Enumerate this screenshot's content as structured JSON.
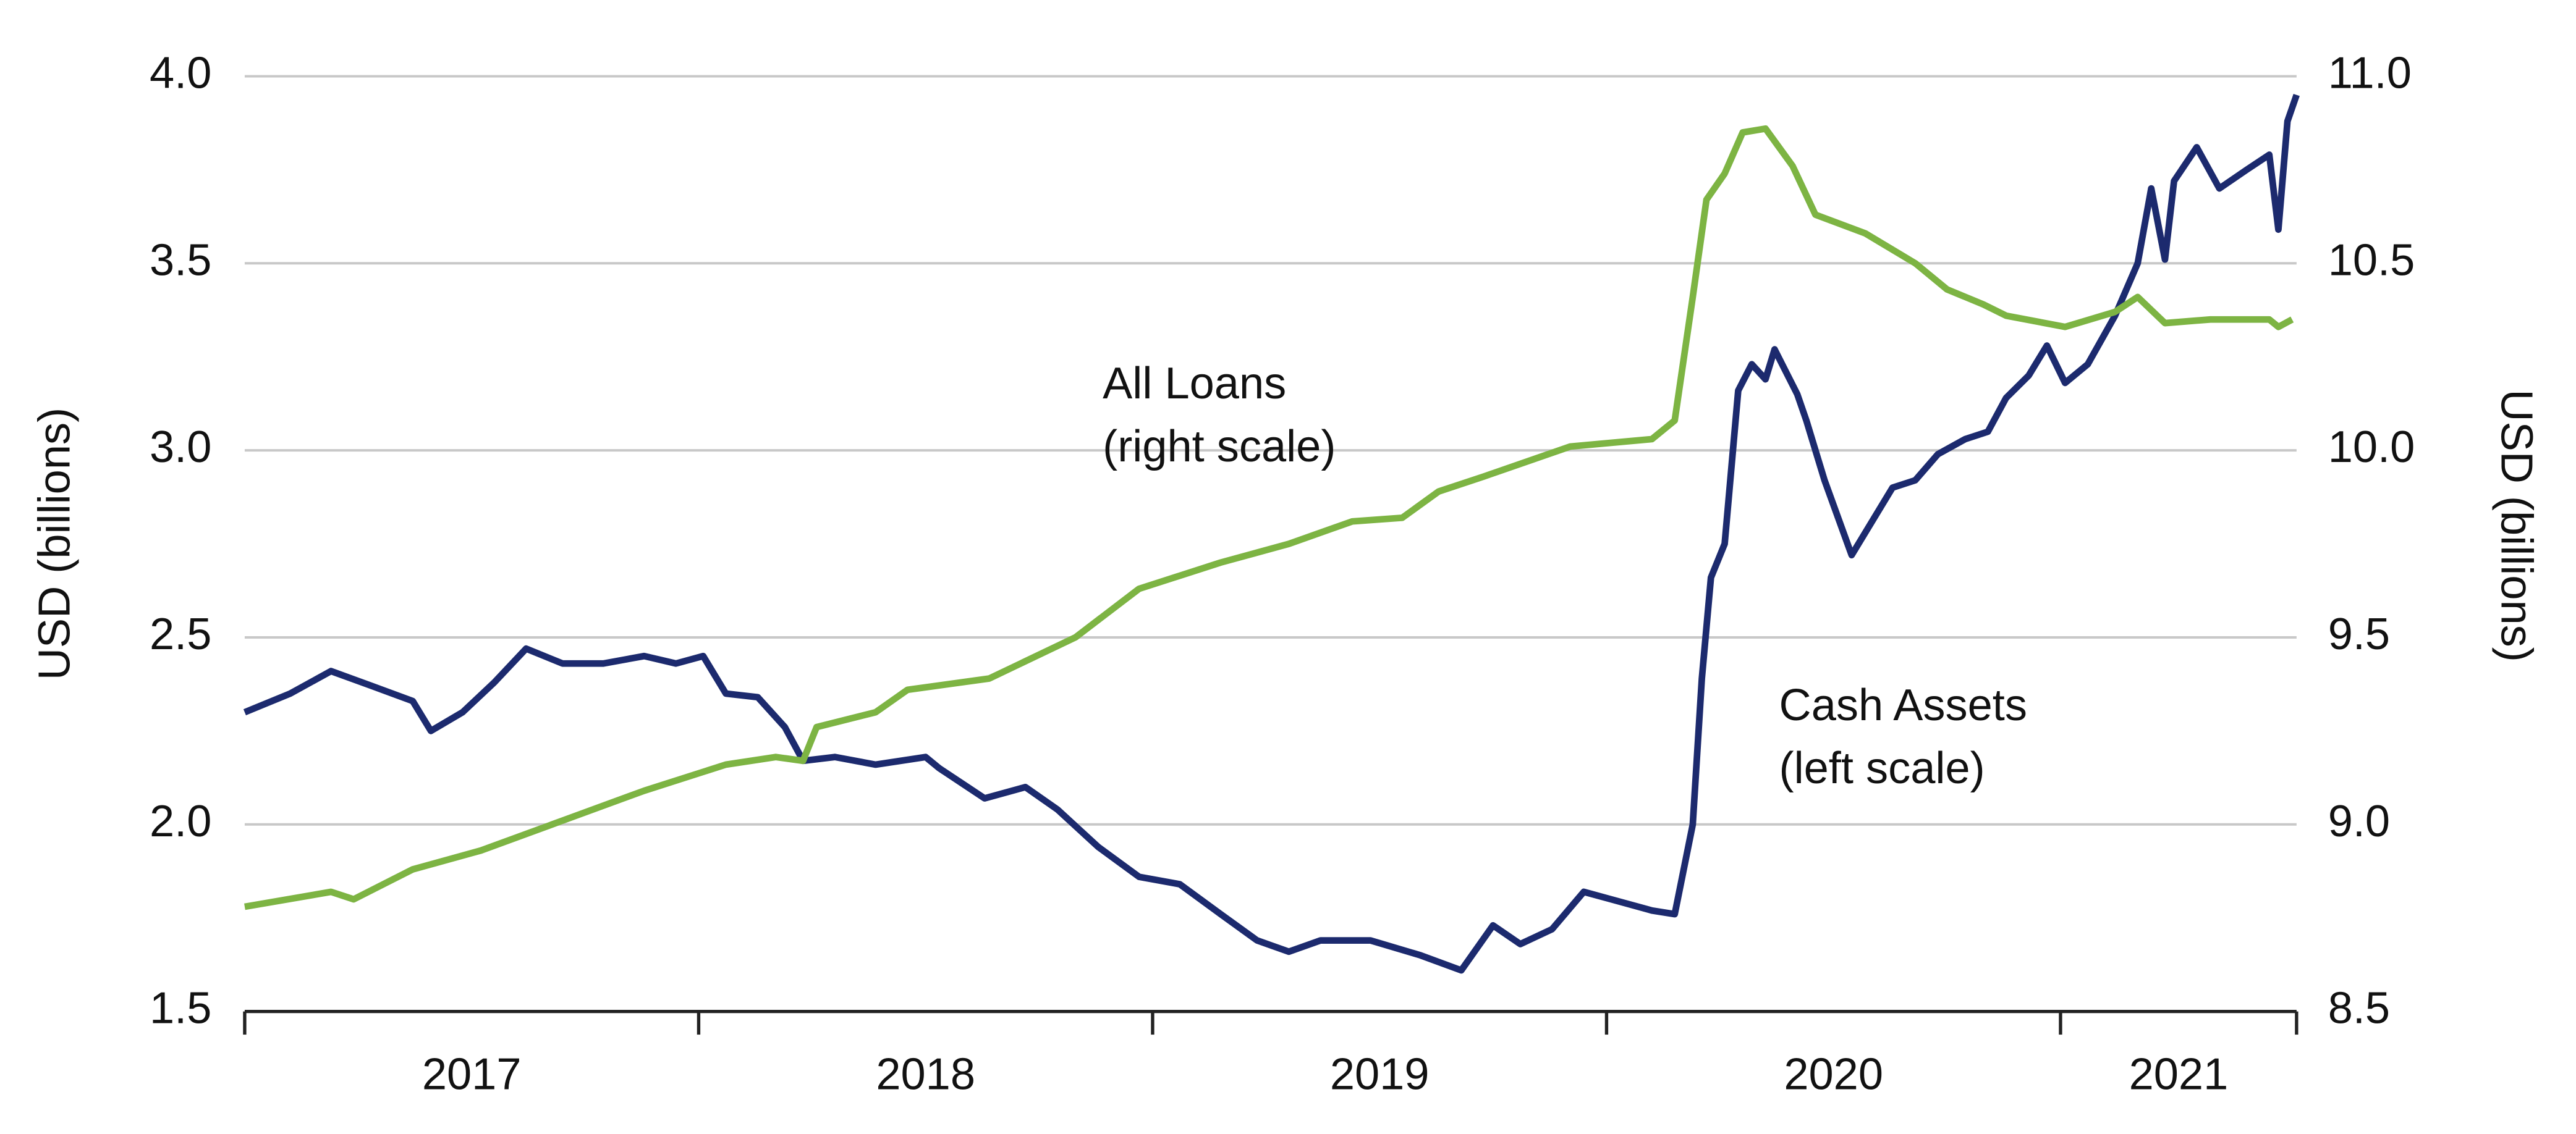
{
  "chart_data": {
    "type": "line",
    "annotations": [
      {
        "lines": [
          "All Loans",
          "(right scale)"
        ],
        "x": 2018.89,
        "y": 10.17,
        "axis": "y2"
      },
      {
        "lines": [
          "Cash Assets",
          "(left scale)"
        ],
        "x": 2020.38,
        "y": 2.31
      }
    ],
    "ylabel": "USD (billions)",
    "y2label": "USD (billions)",
    "xlim": [
      2017,
      2021.52
    ],
    "xticks": [
      2017,
      2018,
      2019,
      2020,
      2021
    ],
    "ylim": [
      1.5,
      4.0
    ],
    "yticks": [
      {
        "value": 1.5,
        "label": "1.5"
      },
      {
        "value": 2,
        "label": "2.0"
      },
      2.5,
      {
        "value": 3,
        "label": "3.0"
      },
      3.5,
      {
        "value": 4,
        "label": "4.0"
      }
    ],
    "y2lim": [
      8.5,
      11.0
    ],
    "y2ticks": [
      8.5,
      {
        "value": 9,
        "label": "9.0"
      },
      9.5,
      {
        "value": 10,
        "label": "10.0"
      },
      10.5,
      {
        "value": 11,
        "label": "11.0"
      }
    ],
    "grid": true,
    "series": [
      {
        "name": "Cash Assets",
        "color": "#1c2a6e",
        "x": [
          2017.0,
          2017.1,
          2017.19,
          2017.28,
          2017.37,
          2017.41,
          2017.48,
          2017.55,
          2017.62,
          2017.7,
          2017.79,
          2017.88,
          2017.95,
          2018.01,
          2018.06,
          2018.13,
          2018.19,
          2018.23,
          2018.3,
          2018.39,
          2018.5,
          2018.53,
          2018.63,
          2018.72,
          2018.79,
          2018.88,
          2018.97,
          2019.06,
          2019.15,
          2019.23,
          2019.3,
          2019.37,
          2019.48,
          2019.59,
          2019.68,
          2019.75,
          2019.81,
          2019.88,
          2019.95,
          2020.01,
          2020.1,
          2020.15,
          2020.19,
          2020.21,
          2020.23,
          2020.26,
          2020.29,
          2020.32,
          2020.35,
          2020.37,
          2020.42,
          2020.44,
          2020.48,
          2020.54,
          2020.63,
          2020.68,
          2020.73,
          2020.79,
          2020.84,
          2020.88,
          2020.93,
          2020.97,
          2021.01,
          2021.06,
          2021.12,
          2021.17,
          2021.2,
          2021.23,
          2021.25,
          2021.3,
          2021.35,
          2021.41,
          2021.46,
          2021.48,
          2021.5,
          2021.52
        ],
        "values": [
          2.3,
          2.35,
          2.41,
          2.37,
          2.33,
          2.25,
          2.3,
          2.38,
          2.47,
          2.43,
          2.43,
          2.45,
          2.43,
          2.45,
          2.35,
          2.34,
          2.26,
          2.17,
          2.18,
          2.16,
          2.18,
          2.15,
          2.07,
          2.1,
          2.04,
          1.94,
          1.86,
          1.84,
          1.76,
          1.69,
          1.66,
          1.69,
          1.69,
          1.65,
          1.61,
          1.73,
          1.68,
          1.72,
          1.82,
          1.8,
          1.77,
          1.76,
          2.0,
          2.39,
          2.66,
          2.75,
          3.16,
          3.23,
          3.19,
          3.27,
          3.15,
          3.08,
          2.92,
          2.72,
          2.9,
          2.92,
          2.99,
          3.03,
          3.05,
          3.14,
          3.2,
          3.28,
          3.18,
          3.23,
          3.36,
          3.5,
          3.7,
          3.51,
          3.72,
          3.81,
          3.7,
          3.75,
          3.79,
          3.59,
          3.88,
          3.95
        ]
      },
      {
        "name": "All Loans",
        "color": "#7db443",
        "axis": "y2",
        "x": [
          2017.0,
          2017.19,
          2017.24,
          2017.37,
          2017.52,
          2017.7,
          2017.88,
          2018.06,
          2018.17,
          2018.23,
          2018.26,
          2018.39,
          2018.46,
          2018.64,
          2018.83,
          2018.97,
          2019.15,
          2019.3,
          2019.44,
          2019.55,
          2019.63,
          2019.73,
          2019.92,
          2020.1,
          2020.15,
          2020.19,
          2020.22,
          2020.26,
          2020.3,
          2020.35,
          2020.41,
          2020.46,
          2020.57,
          2020.68,
          2020.75,
          2020.83,
          2020.88,
          2021.01,
          2021.12,
          2021.17,
          2021.23,
          2021.33,
          2021.46,
          2021.48,
          2021.51
        ],
        "values": [
          8.78,
          8.82,
          8.8,
          8.88,
          8.93,
          9.01,
          9.09,
          9.16,
          9.18,
          9.17,
          9.26,
          9.3,
          9.36,
          9.39,
          9.5,
          9.63,
          9.7,
          9.75,
          9.81,
          9.82,
          9.89,
          9.93,
          10.01,
          10.03,
          10.08,
          10.41,
          10.67,
          10.74,
          10.85,
          10.86,
          10.76,
          10.63,
          10.58,
          10.5,
          10.43,
          10.39,
          10.36,
          10.33,
          10.37,
          10.41,
          10.34,
          10.35,
          10.35,
          10.33,
          10.35
        ]
      }
    ]
  }
}
